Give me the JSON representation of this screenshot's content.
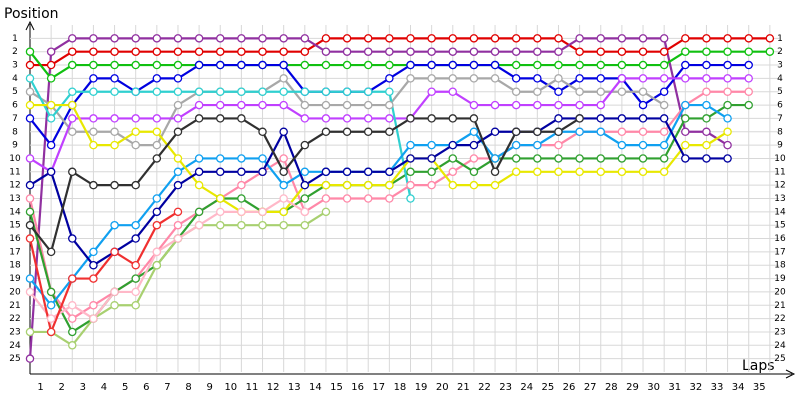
{
  "chart_data": {
    "type": "line",
    "y_label": "Position",
    "x_label": "Laps",
    "x": [
      0,
      1,
      2,
      3,
      4,
      5,
      6,
      7,
      8,
      9,
      10,
      11,
      12,
      13,
      14,
      15,
      16,
      17,
      18,
      19,
      20,
      21,
      22,
      23,
      24,
      25,
      26,
      27,
      28,
      29,
      30,
      31,
      32,
      33,
      34,
      35
    ],
    "xlim": [
      0,
      36
    ],
    "xticks": [
      1,
      2,
      3,
      4,
      5,
      6,
      7,
      8,
      9,
      10,
      11,
      12,
      13,
      14,
      15,
      16,
      17,
      18,
      19,
      20,
      21,
      22,
      23,
      24,
      25,
      26,
      27,
      28,
      29,
      30,
      31,
      32,
      33,
      34,
      35
    ],
    "ylim": [
      26,
      0
    ],
    "yticks": [
      1,
      2,
      3,
      4,
      5,
      6,
      7,
      8,
      9,
      10,
      11,
      12,
      13,
      14,
      15,
      16,
      17,
      18,
      19,
      20,
      21,
      22,
      23,
      24,
      25
    ],
    "grid": true,
    "series": [
      {
        "color": "#e00000",
        "values": [
          3,
          3,
          2,
          2,
          2,
          2,
          2,
          2,
          2,
          2,
          2,
          2,
          2,
          2,
          1,
          1,
          1,
          1,
          1,
          1,
          1,
          1,
          1,
          1,
          1,
          1,
          2,
          2,
          2,
          2,
          2,
          1,
          1,
          1,
          1,
          1
        ]
      },
      {
        "color": "#9030a0",
        "values": [
          25,
          2,
          1,
          1,
          1,
          1,
          1,
          1,
          1,
          1,
          1,
          1,
          1,
          1,
          2,
          2,
          2,
          2,
          2,
          2,
          2,
          2,
          2,
          2,
          2,
          2,
          1,
          1,
          1,
          1,
          1,
          8,
          8,
          9,
          null,
          null
        ]
      },
      {
        "color": "#10c010",
        "values": [
          2,
          4,
          3,
          3,
          3,
          3,
          3,
          3,
          3,
          3,
          3,
          3,
          3,
          3,
          3,
          3,
          3,
          3,
          3,
          3,
          3,
          3,
          3,
          3,
          3,
          3,
          3,
          3,
          3,
          3,
          3,
          2,
          2,
          2,
          2,
          2
        ]
      },
      {
        "color": "#0000e0",
        "values": [
          7,
          9,
          6,
          4,
          4,
          5,
          4,
          4,
          3,
          3,
          3,
          3,
          3,
          5,
          5,
          5,
          5,
          4,
          3,
          3,
          3,
          3,
          3,
          4,
          4,
          5,
          4,
          4,
          4,
          6,
          5,
          3,
          3,
          3,
          3,
          null
        ]
      },
      {
        "color": "#a8a8a8",
        "values": [
          5,
          6,
          8,
          8,
          8,
          9,
          9,
          6,
          5,
          5,
          5,
          5,
          4,
          6,
          6,
          6,
          6,
          6,
          4,
          4,
          4,
          4,
          4,
          5,
          5,
          4,
          5,
          5,
          5,
          5,
          6,
          null,
          null,
          null,
          null,
          null
        ]
      },
      {
        "color": "#c040ff",
        "values": [
          10,
          11,
          7,
          7,
          7,
          7,
          7,
          7,
          6,
          6,
          6,
          6,
          6,
          7,
          7,
          7,
          7,
          7,
          7,
          5,
          5,
          6,
          6,
          6,
          6,
          6,
          6,
          6,
          4,
          4,
          4,
          4,
          4,
          4,
          4,
          null
        ]
      },
      {
        "color": "#ff88a8",
        "values": [
          13,
          20,
          22,
          21,
          20,
          19,
          17,
          15,
          14,
          13,
          12,
          11,
          10,
          14,
          13,
          13,
          13,
          13,
          12,
          12,
          11,
          10,
          10,
          9,
          9,
          9,
          8,
          8,
          8,
          8,
          8,
          6,
          5,
          5,
          5,
          null
        ]
      },
      {
        "color": "#30a030",
        "values": [
          14,
          20,
          23,
          22,
          20,
          19,
          18,
          16,
          14,
          13,
          13,
          14,
          14,
          13,
          12,
          12,
          12,
          12,
          11,
          11,
          10,
          11,
          10,
          10,
          10,
          10,
          10,
          10,
          10,
          10,
          10,
          7,
          7,
          6,
          6,
          null
        ]
      },
      {
        "color": "#30d0d0",
        "values": [
          4,
          7,
          5,
          5,
          5,
          5,
          5,
          5,
          5,
          5,
          5,
          5,
          5,
          5,
          5,
          5,
          5,
          5,
          13,
          null,
          null,
          null,
          null,
          null,
          null,
          null,
          null,
          null,
          null,
          null,
          null,
          null,
          null,
          null,
          null,
          null
        ]
      },
      {
        "color": "#10a0f0",
        "values": [
          19,
          21,
          19,
          17,
          15,
          15,
          13,
          11,
          10,
          10,
          10,
          10,
          12,
          11,
          11,
          11,
          11,
          11,
          9,
          9,
          9,
          8,
          10,
          9,
          9,
          8,
          8,
          8,
          9,
          9,
          9,
          6,
          6,
          7,
          null,
          null
        ]
      },
      {
        "color": "#e8e800",
        "values": [
          6,
          6,
          6,
          9,
          9,
          8,
          8,
          10,
          12,
          13,
          14,
          14,
          14,
          12,
          12,
          12,
          12,
          12,
          10,
          10,
          12,
          12,
          12,
          11,
          11,
          11,
          11,
          11,
          11,
          11,
          11,
          9,
          9,
          8,
          null,
          null
        ]
      },
      {
        "color": "#0000a0",
        "values": [
          12,
          11,
          16,
          18,
          17,
          16,
          14,
          12,
          11,
          11,
          11,
          11,
          8,
          12,
          11,
          11,
          11,
          11,
          10,
          10,
          9,
          9,
          8,
          8,
          8,
          7,
          7,
          7,
          7,
          7,
          7,
          10,
          10,
          10,
          null,
          null
        ]
      },
      {
        "color": "#303030",
        "values": [
          15,
          17,
          11,
          12,
          12,
          12,
          10,
          8,
          7,
          7,
          7,
          8,
          11,
          9,
          8,
          8,
          8,
          8,
          7,
          7,
          7,
          7,
          11,
          8,
          8,
          8,
          7,
          null,
          null,
          null,
          null,
          null,
          null,
          null,
          null,
          null
        ]
      },
      {
        "color": "#a8d070",
        "values": [
          23,
          23,
          24,
          22,
          21,
          21,
          18,
          16,
          15,
          15,
          15,
          15,
          15,
          15,
          14,
          null,
          null,
          null,
          null,
          null,
          null,
          null,
          null,
          null,
          null,
          null,
          null,
          null,
          null,
          null,
          null,
          null,
          null,
          null,
          null,
          null
        ]
      },
      {
        "color": "#ffb8c8",
        "values": [
          20,
          22,
          21,
          22,
          20,
          20,
          17,
          16,
          15,
          14,
          14,
          14,
          13,
          14,
          null,
          null,
          null,
          null,
          null,
          null,
          null,
          null,
          null,
          null,
          null,
          null,
          null,
          null,
          null,
          null,
          null,
          null,
          null,
          null,
          null,
          null
        ]
      },
      {
        "color": "#f03030",
        "values": [
          16,
          23,
          19,
          19,
          17,
          18,
          15,
          14,
          null,
          null,
          null,
          null,
          null,
          null,
          null,
          null,
          null,
          null,
          null,
          null,
          null,
          null,
          null,
          null,
          null,
          null,
          null,
          null,
          null,
          null,
          null,
          null,
          null,
          null,
          null,
          null
        ]
      }
    ]
  }
}
